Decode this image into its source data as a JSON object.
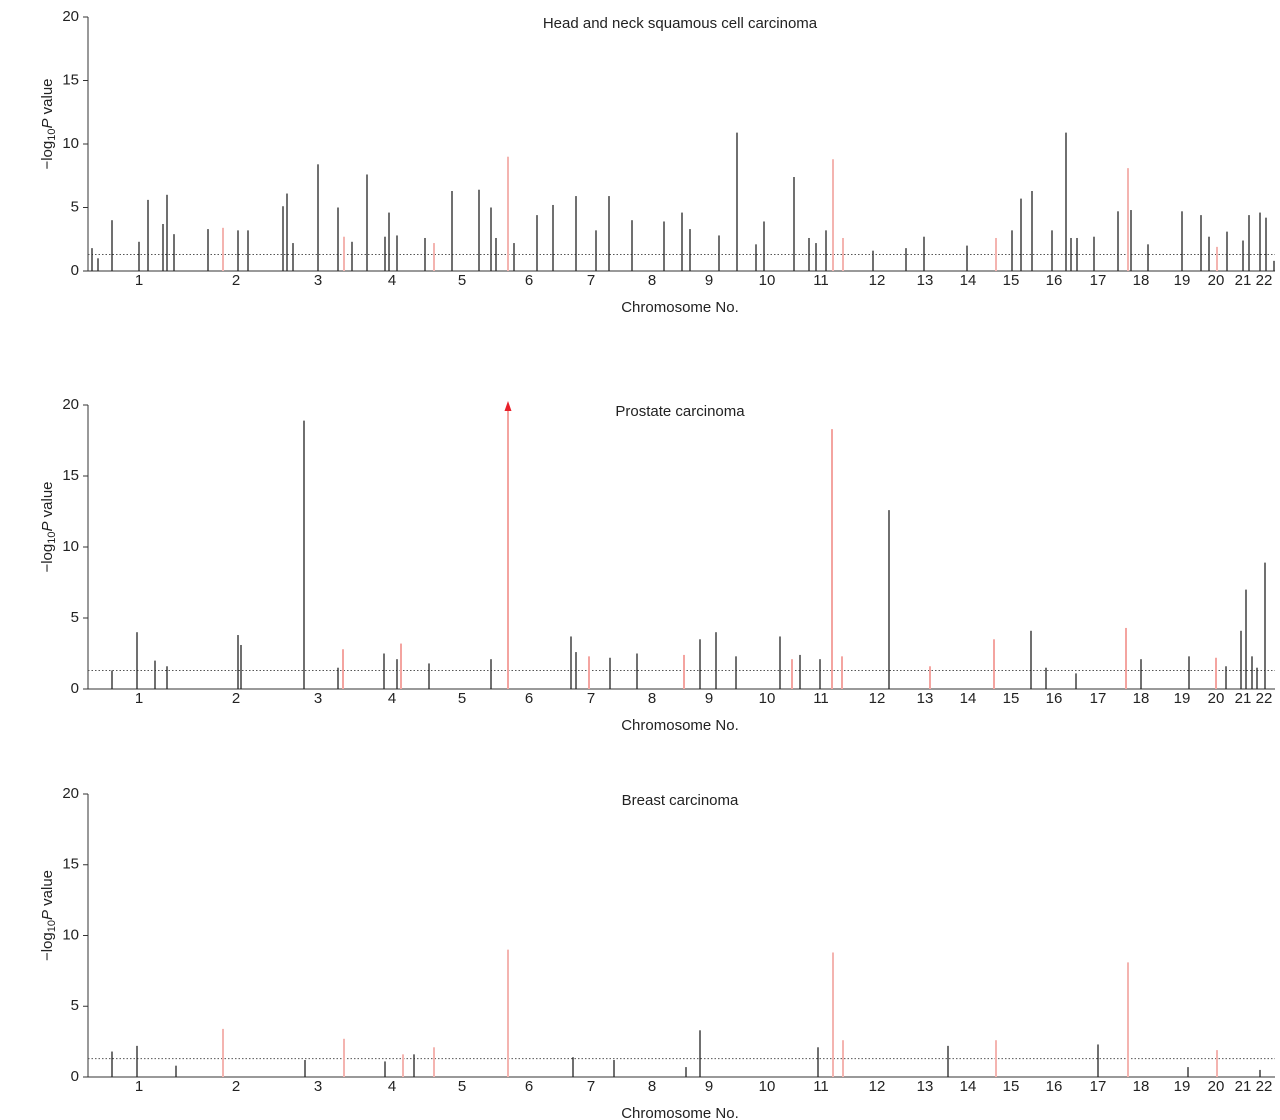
{
  "chart_data": [
    {
      "type": "manhattan",
      "title": "Head and neck squamous cell carcinoma",
      "x_label": "Chromosome No.",
      "y_label": {
        "prefix": "−log",
        "subscript": "10",
        "italic": "P",
        "suffix": " value"
      },
      "xlim": [
        0,
        1187
      ],
      "ylim": [
        0,
        20
      ],
      "yticks": [
        0,
        5,
        10,
        15,
        20
      ],
      "threshold": 1.3,
      "xticks": [
        {
          "value": 51,
          "label": "1"
        },
        {
          "value": 148,
          "label": "2"
        },
        {
          "value": 230,
          "label": "3"
        },
        {
          "value": 304,
          "label": "4"
        },
        {
          "value": 374,
          "label": "5"
        },
        {
          "value": 441,
          "label": "6"
        },
        {
          "value": 503,
          "label": "7"
        },
        {
          "value": 564,
          "label": "8"
        },
        {
          "value": 621,
          "label": "9"
        },
        {
          "value": 679,
          "label": "10"
        },
        {
          "value": 733,
          "label": "11"
        },
        {
          "value": 789,
          "label": "12"
        },
        {
          "value": 837,
          "label": "13"
        },
        {
          "value": 880,
          "label": "14"
        },
        {
          "value": 923,
          "label": "15"
        },
        {
          "value": 966,
          "label": "16"
        },
        {
          "value": 1010,
          "label": "17"
        },
        {
          "value": 1053,
          "label": "18"
        },
        {
          "value": 1094,
          "label": "19"
        },
        {
          "value": 1128,
          "label": "20"
        },
        {
          "value": 1155,
          "label": "21"
        },
        {
          "value": 1176,
          "label": "22"
        }
      ],
      "series": [
        {
          "color": "#222222",
          "x": [
            24,
            60,
            75,
            79,
            86,
            120,
            150,
            160,
            195,
            199,
            205,
            230,
            250,
            264,
            279,
            297,
            301,
            309,
            337,
            364,
            391,
            403,
            408,
            426,
            449,
            465,
            488,
            508,
            521,
            544,
            576,
            594,
            602,
            631,
            649,
            668,
            676,
            706,
            721,
            728,
            738,
            785,
            818,
            836,
            879,
            924,
            933,
            944,
            964,
            978,
            983,
            989,
            1006,
            1030,
            1043,
            1060,
            1094,
            1113,
            1121,
            1139,
            1155,
            1161,
            1172,
            1178,
            1186,
            4,
            51,
            10
          ],
          "values": [
            4.0,
            5.6,
            3.7,
            6.0,
            2.9,
            3.3,
            3.2,
            3.2,
            5.1,
            6.1,
            2.2,
            8.4,
            5.0,
            2.3,
            7.6,
            2.7,
            4.6,
            2.8,
            2.6,
            6.3,
            6.4,
            5.0,
            2.6,
            2.2,
            4.4,
            5.2,
            5.9,
            3.2,
            5.9,
            4.0,
            3.9,
            4.6,
            3.3,
            2.8,
            10.9,
            2.1,
            3.9,
            7.4,
            2.6,
            2.2,
            3.2,
            1.6,
            1.8,
            2.7,
            2.0,
            3.2,
            5.7,
            6.3,
            3.2,
            10.9,
            2.6,
            2.6,
            2.7,
            4.7,
            4.8,
            2.1,
            4.7,
            4.4,
            2.7,
            3.1,
            2.4,
            4.4,
            4.6,
            4.2,
            0.8,
            1.8,
            2.3,
            1.0
          ]
        },
        {
          "color": "#f4b4b0",
          "x": [
            135,
            256,
            346,
            420,
            745,
            755,
            908,
            1040,
            1129
          ],
          "values": [
            3.4,
            2.7,
            2.2,
            9.0,
            8.8,
            2.6,
            2.6,
            8.1,
            1.9
          ]
        }
      ]
    },
    {
      "type": "manhattan",
      "title": "Prostate carcinoma",
      "x_label": "Chromosome No.",
      "y_label": {
        "prefix": "−log",
        "subscript": "10",
        "italic": "P",
        "suffix": " value"
      },
      "xlim": [
        0,
        1187
      ],
      "ylim": [
        0,
        20
      ],
      "yticks": [
        0,
        5,
        10,
        15,
        20
      ],
      "threshold": 1.3,
      "xticks": [
        {
          "value": 51,
          "label": "1"
        },
        {
          "value": 148,
          "label": "2"
        },
        {
          "value": 230,
          "label": "3"
        },
        {
          "value": 304,
          "label": "4"
        },
        {
          "value": 374,
          "label": "5"
        },
        {
          "value": 441,
          "label": "6"
        },
        {
          "value": 503,
          "label": "7"
        },
        {
          "value": 564,
          "label": "8"
        },
        {
          "value": 621,
          "label": "9"
        },
        {
          "value": 679,
          "label": "10"
        },
        {
          "value": 733,
          "label": "11"
        },
        {
          "value": 789,
          "label": "12"
        },
        {
          "value": 837,
          "label": "13"
        },
        {
          "value": 880,
          "label": "14"
        },
        {
          "value": 923,
          "label": "15"
        },
        {
          "value": 966,
          "label": "16"
        },
        {
          "value": 1010,
          "label": "17"
        },
        {
          "value": 1053,
          "label": "18"
        },
        {
          "value": 1094,
          "label": "19"
        },
        {
          "value": 1128,
          "label": "20"
        },
        {
          "value": 1155,
          "label": "21"
        },
        {
          "value": 1176,
          "label": "22"
        }
      ],
      "series": [
        {
          "color": "#222222",
          "x": [
            24,
            49,
            67,
            79,
            150,
            153,
            216,
            250,
            296,
            309,
            341,
            403,
            483,
            488,
            522,
            549,
            612,
            628,
            648,
            692,
            712,
            732,
            801,
            943,
            958,
            988,
            1053,
            1101,
            1138,
            1153,
            1158,
            1164,
            1177,
            1169
          ],
          "values": [
            1.3,
            4.0,
            2.0,
            1.6,
            3.8,
            3.1,
            18.9,
            1.5,
            2.5,
            2.1,
            1.8,
            2.1,
            3.7,
            2.6,
            2.2,
            2.5,
            3.5,
            4.0,
            2.3,
            3.7,
            2.4,
            2.1,
            12.6,
            4.1,
            1.5,
            1.1,
            2.1,
            2.3,
            1.6,
            4.1,
            7.0,
            2.3,
            8.9,
            1.5
          ]
        },
        {
          "color": "#f4a4a0",
          "x": [
            255,
            313,
            420,
            501,
            596,
            704,
            744,
            754,
            842,
            906,
            1038,
            1128
          ],
          "values": [
            2.8,
            3.2,
            20,
            2.3,
            2.4,
            2.1,
            18.3,
            2.3,
            1.6,
            3.5,
            4.3,
            2.2
          ]
        }
      ]
    },
    {
      "type": "manhattan",
      "title": "Breast carcinoma",
      "x_label": "Chromosome No.",
      "y_label": {
        "prefix": "−log",
        "subscript": "10",
        "italic": "P",
        "suffix": " value"
      },
      "xlim": [
        0,
        1187
      ],
      "ylim": [
        0,
        20
      ],
      "yticks": [
        0,
        5,
        10,
        15,
        20
      ],
      "threshold": 1.3,
      "xticks": [
        {
          "value": 51,
          "label": "1"
        },
        {
          "value": 148,
          "label": "2"
        },
        {
          "value": 230,
          "label": "3"
        },
        {
          "value": 304,
          "label": "4"
        },
        {
          "value": 374,
          "label": "5"
        },
        {
          "value": 441,
          "label": "6"
        },
        {
          "value": 503,
          "label": "7"
        },
        {
          "value": 564,
          "label": "8"
        },
        {
          "value": 621,
          "label": "9"
        },
        {
          "value": 679,
          "label": "10"
        },
        {
          "value": 733,
          "label": "11"
        },
        {
          "value": 789,
          "label": "12"
        },
        {
          "value": 837,
          "label": "13"
        },
        {
          "value": 880,
          "label": "14"
        },
        {
          "value": 923,
          "label": "15"
        },
        {
          "value": 966,
          "label": "16"
        },
        {
          "value": 1010,
          "label": "17"
        },
        {
          "value": 1053,
          "label": "18"
        },
        {
          "value": 1094,
          "label": "19"
        },
        {
          "value": 1128,
          "label": "20"
        },
        {
          "value": 1155,
          "label": "21"
        },
        {
          "value": 1176,
          "label": "22"
        }
      ],
      "series": [
        {
          "color": "#222222",
          "x": [
            24,
            49,
            88,
            217,
            297,
            326,
            485,
            526,
            598,
            612,
            730,
            860,
            1010,
            1100,
            1172
          ],
          "values": [
            1.8,
            2.2,
            0.8,
            1.2,
            1.1,
            1.6,
            1.4,
            1.2,
            0.7,
            3.3,
            2.1,
            2.2,
            2.3,
            0.7,
            0.5
          ]
        },
        {
          "color": "#f4b4b0",
          "x": [
            135,
            256,
            346,
            420,
            745,
            755,
            908,
            1040,
            1129,
            315
          ],
          "values": [
            3.4,
            2.7,
            2.1,
            9.0,
            8.8,
            2.6,
            2.6,
            8.1,
            1.9,
            1.6
          ]
        }
      ]
    }
  ]
}
